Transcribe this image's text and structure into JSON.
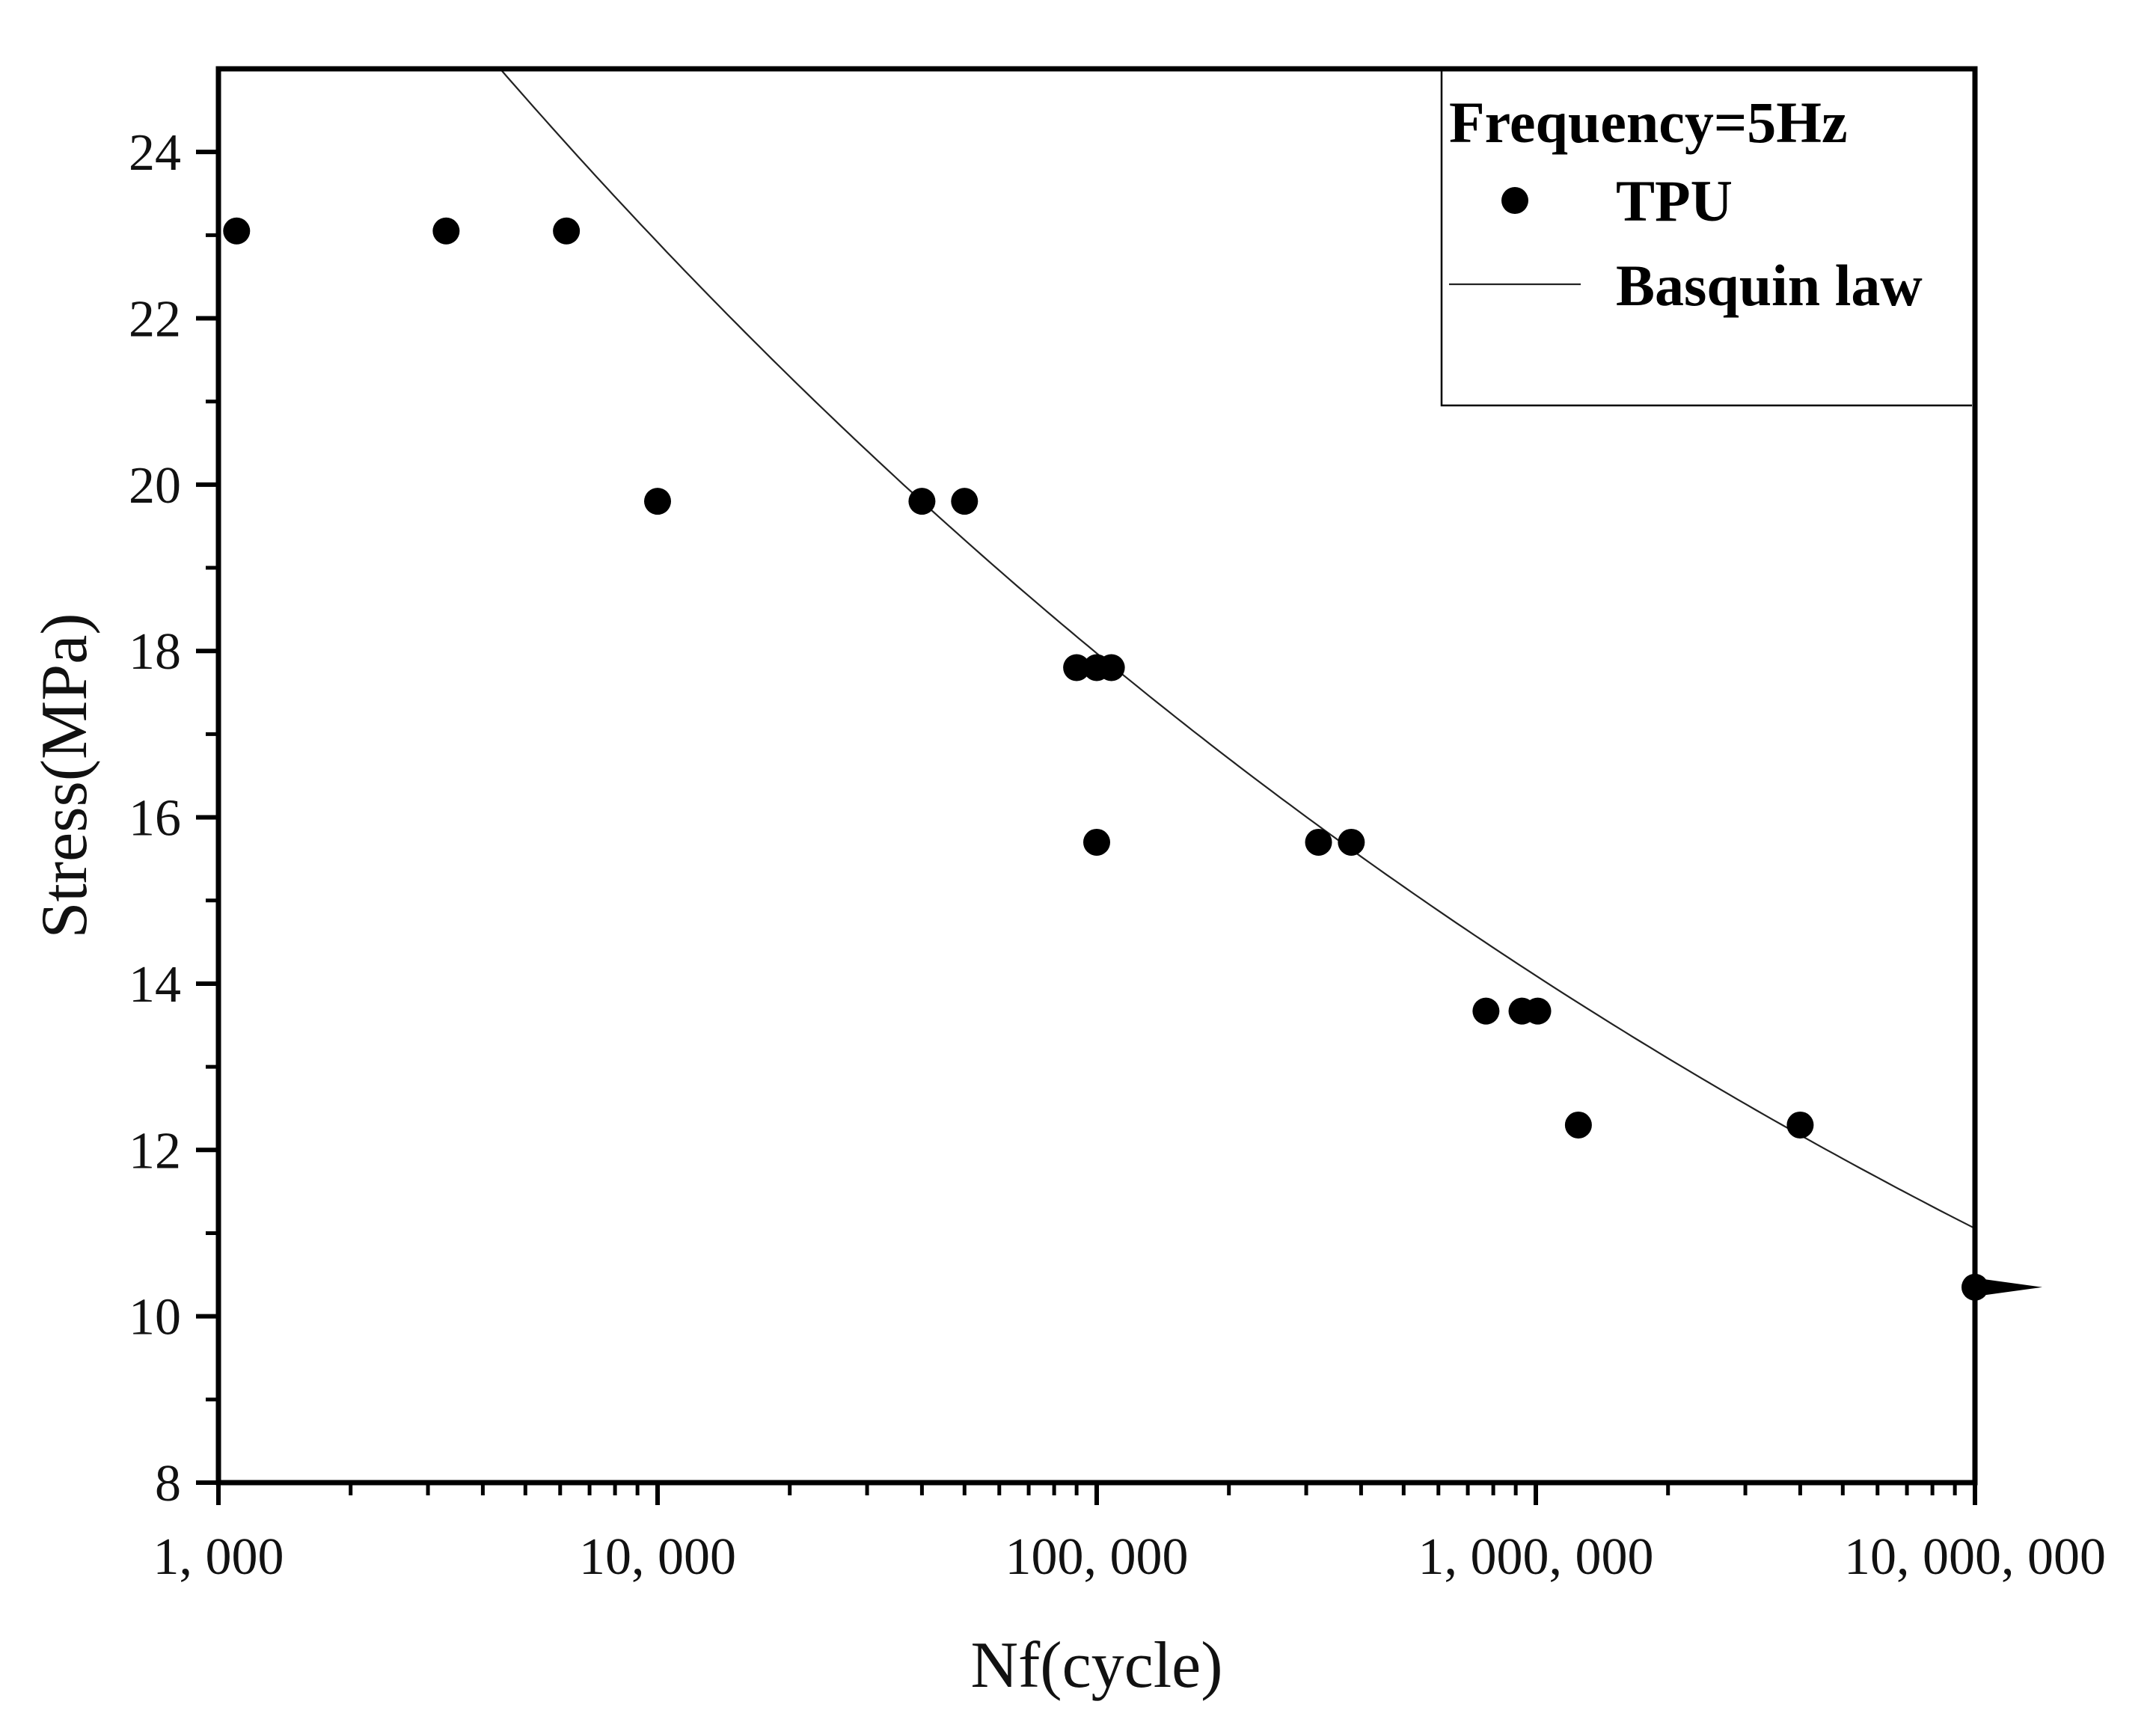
{
  "chart_data": {
    "type": "scatter",
    "title": "",
    "xlabel": "Nf(cycle)",
    "ylabel": "Stress(MPa)",
    "xscale": "log",
    "xlim": [
      1000,
      10000000
    ],
    "ylim": [
      8,
      25
    ],
    "x_ticks": [
      1000,
      10000,
      100000,
      1000000,
      10000000
    ],
    "x_tick_labels": [
      "1, 000",
      "10, 000",
      "100, 000",
      "1, 000, 000",
      "10, 000, 000"
    ],
    "y_ticks": [
      8,
      10,
      12,
      14,
      16,
      18,
      20,
      22,
      24
    ],
    "y_tick_labels": [
      "8",
      "10",
      "12",
      "14",
      "16",
      "18",
      "20",
      "22",
      "24"
    ],
    "grid": false,
    "legend": {
      "title": "Frequency=5Hz",
      "position": "top-right",
      "entries": [
        "TPU",
        "Basquin law"
      ]
    },
    "series": [
      {
        "name": "TPU",
        "kind": "scatter",
        "points": [
          {
            "x": 1100,
            "y": 23.05
          },
          {
            "x": 3300,
            "y": 23.05
          },
          {
            "x": 6200,
            "y": 23.05
          },
          {
            "x": 10000,
            "y": 19.8
          },
          {
            "x": 40000,
            "y": 19.8
          },
          {
            "x": 50000,
            "y": 19.8
          },
          {
            "x": 90000,
            "y": 17.8
          },
          {
            "x": 100000,
            "y": 17.8
          },
          {
            "x": 108000,
            "y": 17.8
          },
          {
            "x": 100000,
            "y": 15.7
          },
          {
            "x": 320000,
            "y": 15.7
          },
          {
            "x": 380000,
            "y": 15.7
          },
          {
            "x": 770000,
            "y": 13.67
          },
          {
            "x": 930000,
            "y": 13.67
          },
          {
            "x": 1010000,
            "y": 13.67
          },
          {
            "x": 1250000,
            "y": 12.3
          },
          {
            "x": 4000000,
            "y": 12.3
          },
          {
            "x": 10000000,
            "y": 10.35
          }
        ],
        "runout": {
          "x": 10000000,
          "y": 10.35
        }
      },
      {
        "name": "Basquin law",
        "kind": "line",
        "model": "y = A * x^b",
        "A": 60.55,
        "b": -0.1055,
        "x_range": [
          1000,
          10000000
        ]
      }
    ]
  }
}
